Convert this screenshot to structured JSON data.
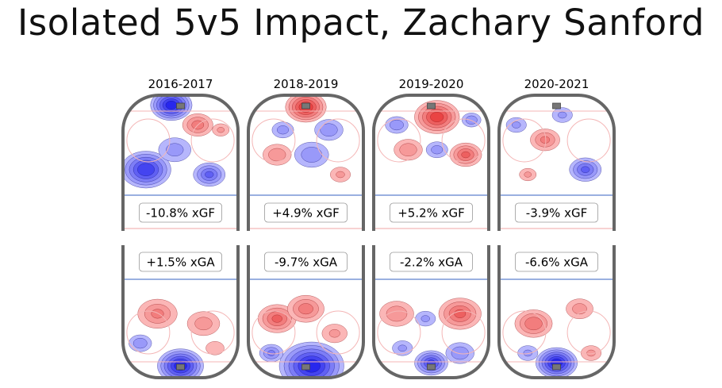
{
  "page": {
    "title": "Isolated 5v5 Impact, Zachary Sanford"
  },
  "colors": {
    "positive": "#d7191c",
    "negative": "#2020d0",
    "boards": "#666666",
    "blue_line": "#9ab0e0",
    "red_line": "#f4b6b6"
  },
  "chart_data": {
    "type": "heatmap",
    "title": "Isolated 5v5 Impact, Zachary Sanford",
    "panels": [
      {
        "season": "2016-2017",
        "xgf_label": "-10.8% xGF",
        "xga_label": "+1.5% xGA",
        "xgf_pct": -10.8,
        "xga_pct": 1.5,
        "offense_blobs": [
          {
            "x": 0.42,
            "y": 0.1,
            "r": 0.18,
            "v": -0.95
          },
          {
            "x": 0.65,
            "y": 0.3,
            "r": 0.15,
            "v": 0.5
          },
          {
            "x": 0.2,
            "y": 0.75,
            "r": 0.22,
            "v": -0.85
          },
          {
            "x": 0.45,
            "y": 0.55,
            "r": 0.18,
            "v": -0.35
          },
          {
            "x": 0.75,
            "y": 0.8,
            "r": 0.15,
            "v": -0.6
          },
          {
            "x": 0.85,
            "y": 0.35,
            "r": 0.1,
            "v": 0.3
          }
        ],
        "defense_blobs": [
          {
            "x": 0.5,
            "y": 0.88,
            "r": 0.2,
            "v": -0.95
          },
          {
            "x": 0.3,
            "y": 0.35,
            "r": 0.2,
            "v": 0.45
          },
          {
            "x": 0.7,
            "y": 0.45,
            "r": 0.18,
            "v": 0.35
          },
          {
            "x": 0.15,
            "y": 0.65,
            "r": 0.12,
            "v": -0.4
          },
          {
            "x": 0.8,
            "y": 0.7,
            "r": 0.12,
            "v": 0.25
          }
        ]
      },
      {
        "season": "2018-2019",
        "xgf_label": "+4.9% xGF",
        "xga_label": "-9.7% xGA",
        "xgf_pct": 4.9,
        "xga_pct": -9.7,
        "offense_blobs": [
          {
            "x": 0.5,
            "y": 0.12,
            "r": 0.18,
            "v": 0.85
          },
          {
            "x": 0.25,
            "y": 0.6,
            "r": 0.15,
            "v": 0.4
          },
          {
            "x": 0.55,
            "y": 0.6,
            "r": 0.18,
            "v": -0.4
          },
          {
            "x": 0.7,
            "y": 0.35,
            "r": 0.15,
            "v": -0.4
          },
          {
            "x": 0.3,
            "y": 0.35,
            "r": 0.12,
            "v": -0.35
          },
          {
            "x": 0.8,
            "y": 0.8,
            "r": 0.12,
            "v": 0.3
          }
        ],
        "defense_blobs": [
          {
            "x": 0.55,
            "y": 0.88,
            "r": 0.28,
            "v": -0.95
          },
          {
            "x": 0.25,
            "y": 0.4,
            "r": 0.18,
            "v": 0.6
          },
          {
            "x": 0.5,
            "y": 0.3,
            "r": 0.18,
            "v": 0.5
          },
          {
            "x": 0.75,
            "y": 0.55,
            "r": 0.15,
            "v": 0.3
          },
          {
            "x": 0.2,
            "y": 0.75,
            "r": 0.12,
            "v": -0.45
          }
        ]
      },
      {
        "season": "2019-2020",
        "xgf_label": "+5.2% xGF",
        "xga_label": "-2.2% xGA",
        "xgf_pct": 5.2,
        "xga_pct": -2.2,
        "offense_blobs": [
          {
            "x": 0.55,
            "y": 0.22,
            "r": 0.2,
            "v": 0.8
          },
          {
            "x": 0.3,
            "y": 0.55,
            "r": 0.15,
            "v": 0.4
          },
          {
            "x": 0.8,
            "y": 0.6,
            "r": 0.15,
            "v": 0.6
          },
          {
            "x": 0.2,
            "y": 0.3,
            "r": 0.12,
            "v": -0.4
          },
          {
            "x": 0.85,
            "y": 0.25,
            "r": 0.1,
            "v": -0.4
          },
          {
            "x": 0.55,
            "y": 0.55,
            "r": 0.12,
            "v": -0.35
          }
        ],
        "defense_blobs": [
          {
            "x": 0.5,
            "y": 0.85,
            "r": 0.15,
            "v": -0.75
          },
          {
            "x": 0.75,
            "y": 0.35,
            "r": 0.2,
            "v": 0.6
          },
          {
            "x": 0.2,
            "y": 0.35,
            "r": 0.18,
            "v": 0.4
          },
          {
            "x": 0.45,
            "y": 0.4,
            "r": 0.12,
            "v": -0.3
          },
          {
            "x": 0.75,
            "y": 0.75,
            "r": 0.15,
            "v": -0.4
          },
          {
            "x": 0.25,
            "y": 0.7,
            "r": 0.12,
            "v": -0.3
          }
        ]
      },
      {
        "season": "2020-2021",
        "xgf_label": "-3.9% xGF",
        "xga_label": "-6.6% xGA",
        "xgf_pct": -3.9,
        "xga_pct": -6.6,
        "offense_blobs": [
          {
            "x": 0.4,
            "y": 0.45,
            "r": 0.15,
            "v": 0.45
          },
          {
            "x": 0.75,
            "y": 0.75,
            "r": 0.15,
            "v": -0.6
          },
          {
            "x": 0.15,
            "y": 0.3,
            "r": 0.12,
            "v": -0.3
          },
          {
            "x": 0.55,
            "y": 0.2,
            "r": 0.12,
            "v": -0.3
          },
          {
            "x": 0.25,
            "y": 0.8,
            "r": 0.1,
            "v": 0.3
          }
        ],
        "defense_blobs": [
          {
            "x": 0.5,
            "y": 0.85,
            "r": 0.18,
            "v": -0.95
          },
          {
            "x": 0.3,
            "y": 0.45,
            "r": 0.18,
            "v": 0.55
          },
          {
            "x": 0.7,
            "y": 0.3,
            "r": 0.15,
            "v": 0.35
          },
          {
            "x": 0.8,
            "y": 0.75,
            "r": 0.12,
            "v": 0.3
          },
          {
            "x": 0.25,
            "y": 0.75,
            "r": 0.12,
            "v": -0.3
          }
        ]
      }
    ]
  }
}
